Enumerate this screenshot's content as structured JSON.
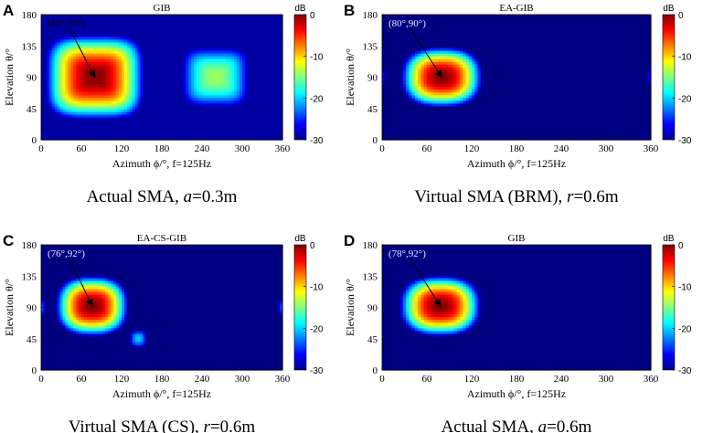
{
  "chart_data": [
    {
      "type": "heatmap",
      "panel_letter": "A",
      "title": "GIB",
      "caption": "Actual SMA, a=0.3m",
      "caption_parts": [
        "Actual SMA, ",
        "a",
        "=0.3m"
      ],
      "annotation": "(80°,90°)",
      "peak": {
        "azimuth": 80,
        "elevation": 90
      },
      "xlabel": "Azimuth ϕ/°, f=125Hz",
      "ylabel": "Elevation θ/°",
      "xlim": [
        0,
        360
      ],
      "ylim": [
        0,
        180
      ],
      "xticks": [
        0,
        60,
        120,
        180,
        240,
        300,
        360
      ],
      "yticks": [
        0,
        45,
        90,
        135,
        180
      ],
      "colorbar": {
        "label": "dB",
        "range": [
          -30,
          0
        ],
        "ticks": [
          0,
          -10,
          -20,
          -30
        ],
        "tick_labels": [
          "0",
          "-10",
          "-20",
          "-30"
        ]
      },
      "lobes": [
        {
          "azimuth": 80,
          "elevation": 90,
          "level_db": 0,
          "shape": "broad main lobe"
        },
        {
          "azimuth": 260,
          "elevation": 90,
          "level_db": -14,
          "shape": "broad back lobe"
        }
      ],
      "minimum_level_db": -30
    },
    {
      "type": "heatmap",
      "panel_letter": "B",
      "title": "EA-GIB",
      "caption": "Virtual SMA (BRM), r=0.6m",
      "caption_parts": [
        "Virtual SMA (BRM), ",
        "r",
        "=0.6m"
      ],
      "annotation": "(80°,90°)",
      "peak": {
        "azimuth": 80,
        "elevation": 90
      },
      "xlabel": "Azimuth ϕ/°, f=125Hz",
      "ylabel": "Elevation θ/°",
      "xlim": [
        0,
        360
      ],
      "ylim": [
        0,
        180
      ],
      "xticks": [
        0,
        60,
        120,
        180,
        240,
        300,
        360
      ],
      "yticks": [
        0,
        45,
        90,
        135,
        180
      ],
      "colorbar": {
        "label": "dB",
        "range": [
          -30,
          0
        ],
        "ticks": [
          0,
          -10,
          -20,
          -30
        ],
        "tick_labels": [
          "0",
          "-10",
          "-20",
          "-30"
        ]
      },
      "lobes": [
        {
          "azimuth": 80,
          "elevation": 90,
          "level_db": 0,
          "shape": "main lobe"
        },
        {
          "azimuth": 360,
          "elevation": 90,
          "level_db": -26,
          "shape": "faint side lobe"
        }
      ],
      "minimum_level_db": -30
    },
    {
      "type": "heatmap",
      "panel_letter": "C",
      "title": "EA-CS-GIB",
      "caption": "Virtual SMA (CS), r=0.6m",
      "caption_parts": [
        "Virtual SMA (CS), ",
        "r",
        "=0.6m"
      ],
      "annotation": "(76°,92°)",
      "peak": {
        "azimuth": 76,
        "elevation": 92
      },
      "xlabel": "Azimuth ϕ/°, f=125Hz",
      "ylabel": "Elevation θ/°",
      "xlim": [
        0,
        360
      ],
      "ylim": [
        0,
        180
      ],
      "xticks": [
        0,
        60,
        120,
        180,
        240,
        300,
        360
      ],
      "yticks": [
        0,
        45,
        90,
        135,
        180
      ],
      "colorbar": {
        "label": "dB",
        "range": [
          -30,
          0
        ],
        "ticks": [
          0,
          -10,
          -20,
          -30
        ],
        "tick_labels": [
          "0",
          "-10",
          "-20",
          "-30"
        ]
      },
      "lobes": [
        {
          "azimuth": 76,
          "elevation": 92,
          "level_db": 0,
          "shape": "main lobe"
        },
        {
          "azimuth": 145,
          "elevation": 45,
          "level_db": -20,
          "shape": "side lobe"
        },
        {
          "azimuth": 360,
          "elevation": 90,
          "level_db": -24,
          "shape": "faint side lobe"
        }
      ],
      "minimum_level_db": -30
    },
    {
      "type": "heatmap",
      "panel_letter": "D",
      "title": "GIB",
      "caption": "Actual SMA, a=0.6m",
      "caption_parts": [
        "Actual SMA, ",
        "a",
        "=0.6m"
      ],
      "annotation": "(78°,92°)",
      "peak": {
        "azimuth": 78,
        "elevation": 92
      },
      "xlabel": "Azimuth ϕ/°, f=125Hz",
      "ylabel": "Elevation θ/°",
      "xlim": [
        0,
        360
      ],
      "ylim": [
        0,
        180
      ],
      "xticks": [
        0,
        60,
        120,
        180,
        240,
        300,
        360
      ],
      "yticks": [
        0,
        45,
        90,
        135,
        180
      ],
      "colorbar": {
        "label": "dB",
        "range": [
          -30,
          0
        ],
        "ticks": [
          0,
          -10,
          -20,
          -30
        ],
        "tick_labels": [
          "0",
          "-10",
          "-20",
          "-30"
        ]
      },
      "lobes": [
        {
          "azimuth": 78,
          "elevation": 92,
          "level_db": 0,
          "shape": "main lobe"
        }
      ],
      "minimum_level_db": -30
    }
  ]
}
